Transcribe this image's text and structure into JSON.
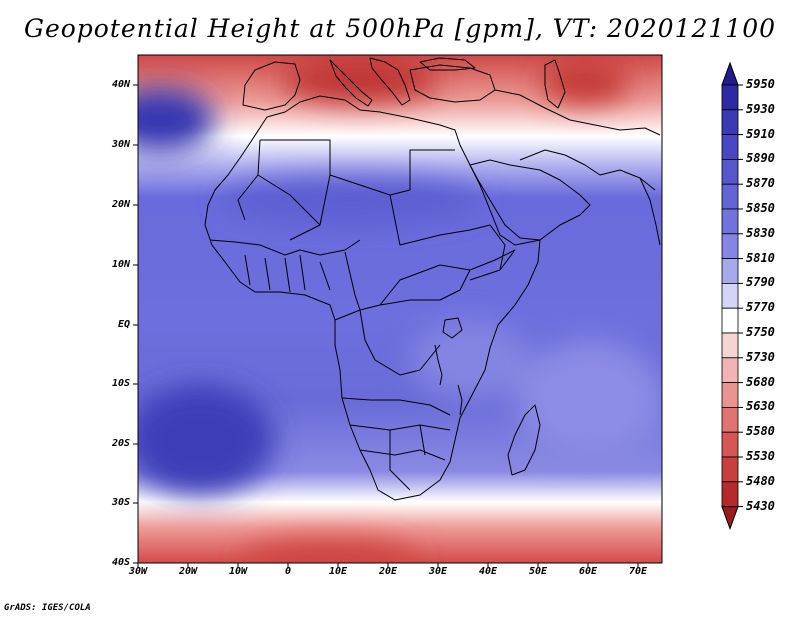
{
  "title": "Geopotential Height at 500hPa [gpm], VT: 2020121100",
  "credit": "GrADS: IGES/COLA",
  "map": {
    "type": "filled-contour",
    "variable": "Geopotential Height at 500hPa",
    "units": "gpm",
    "valid_time": "2020121100",
    "region": "Africa",
    "lon_range": [
      -30,
      75
    ],
    "lat_range": [
      -40,
      45
    ],
    "lat_labels": [
      {
        "lat": 40,
        "text": "40N"
      },
      {
        "lat": 30,
        "text": "30N"
      },
      {
        "lat": 20,
        "text": "20N"
      },
      {
        "lat": 10,
        "text": "10N"
      },
      {
        "lat": 0,
        "text": "EQ"
      },
      {
        "lat": -10,
        "text": "10S"
      },
      {
        "lat": -20,
        "text": "20S"
      },
      {
        "lat": -30,
        "text": "30S"
      },
      {
        "lat": -40,
        "text": "40S"
      }
    ],
    "lon_labels": [
      {
        "lon": -30,
        "text": "30W"
      },
      {
        "lon": -20,
        "text": "20W"
      },
      {
        "lon": -10,
        "text": "10W"
      },
      {
        "lon": 0,
        "text": "0"
      },
      {
        "lon": 10,
        "text": "10E"
      },
      {
        "lon": 20,
        "text": "20E"
      },
      {
        "lon": 30,
        "text": "30E"
      },
      {
        "lon": 40,
        "text": "40E"
      },
      {
        "lon": 50,
        "text": "50E"
      },
      {
        "lon": 60,
        "text": "60E"
      },
      {
        "lon": 70,
        "text": "70E"
      }
    ]
  },
  "colorbar": {
    "levels": [
      "5950",
      "5930",
      "5910",
      "5890",
      "5870",
      "5850",
      "5830",
      "5810",
      "5790",
      "5770",
      "5750",
      "5730",
      "5680",
      "5630",
      "5580",
      "5530",
      "5480",
      "5430"
    ],
    "colors": [
      "#241b8f",
      "#2e2aa4",
      "#3a3bb4",
      "#4848c2",
      "#5757cc",
      "#6464d6",
      "#7272dc",
      "#8585e4",
      "#a8a8ec",
      "#d4d4f6",
      "#ffffff",
      "#f6d4d4",
      "#f0b4b2",
      "#e89490",
      "#e07470",
      "#d65654",
      "#c8403e",
      "#b52a2a",
      "#9e1a1a"
    ]
  }
}
